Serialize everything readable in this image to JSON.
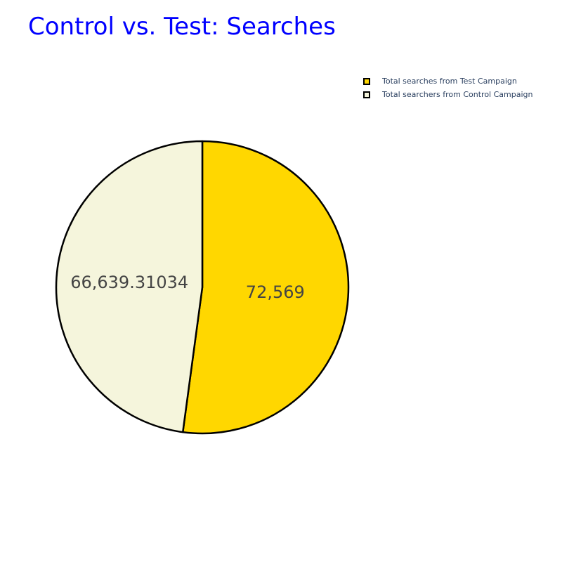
{
  "chart_data": {
    "type": "pie",
    "title": "Control vs. Test: Searches",
    "title_color": "#0000ff",
    "slices": [
      {
        "name": "Total searches from Test Campaign",
        "value": 72569,
        "label": "72,569",
        "color": "#ffd700"
      },
      {
        "name": "Total searchers from Control Campaign",
        "value": 66639.31034,
        "label": "66,639.31034",
        "color": "#f5f5dc"
      }
    ],
    "slice_border_color": "#000000",
    "label_color": "#444444",
    "legend_text_color": "#2a3f5f",
    "legend_position": "top-right",
    "direction": "clockwise",
    "start_angle": "12 o'clock"
  }
}
